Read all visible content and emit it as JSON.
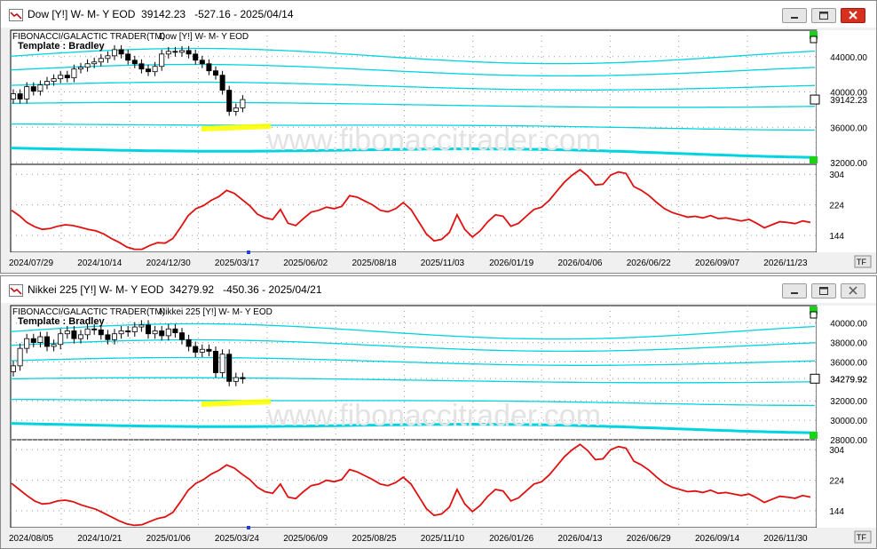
{
  "windows": [
    {
      "title": "Dow [Y!] W- M- Y EOD  39142.23   -527.16 - 2025/04/14",
      "close_style": "red",
      "header_left": "FIBONACCI/GALACTIC TRADER(TM)",
      "header_right": "Dow [Y!] W- M- Y EOD",
      "template_label": "Template : Bradley",
      "watermark": "www.fibonaccitrader.com",
      "current_price": "39142.23",
      "tf_label": "TF",
      "chart_data": {
        "type": "line",
        "price_axis": {
          "ylim": [
            31800,
            47000
          ],
          "ticks": [
            "44000.00",
            "40000.00",
            "36000.00",
            "32000.00"
          ]
        },
        "indicator_axis": {
          "ylim": [
            100,
            330
          ],
          "ticks": [
            "304",
            "224",
            "144"
          ]
        },
        "x_labels": [
          "2024/07/29",
          "2024/10/14",
          "2024/12/30",
          "2025/03/17",
          "2025/06/02",
          "2025/08/18",
          "2025/11/03",
          "2026/01/19",
          "2026/04/06",
          "2026/06/22",
          "2026/09/07",
          "2026/11/23"
        ],
        "price_candles": [
          39800,
          39200,
          40600,
          40100,
          40800,
          41200,
          41500,
          41900,
          41600,
          42600,
          42800,
          43200,
          43400,
          43800,
          44100,
          44800,
          44300,
          43600,
          43200,
          42600,
          42300,
          42900,
          44300,
          44600,
          44500,
          44700,
          44300,
          43600,
          43200,
          42400,
          41900,
          40200,
          37800,
          38200,
          39142
        ],
        "indicator": [
          210,
          196,
          178,
          167,
          160,
          162,
          168,
          172,
          170,
          165,
          160,
          156,
          148,
          136,
          126,
          114,
          108,
          108,
          118,
          125,
          124,
          136,
          165,
          196,
          214,
          222,
          236,
          246,
          262,
          254,
          238,
          222,
          200,
          190,
          186,
          212,
          176,
          170,
          188,
          205,
          210,
          218,
          214,
          220,
          248,
          244,
          234,
          224,
          210,
          206,
          214,
          230,
          212,
          180,
          148,
          130,
          134,
          152,
          198,
          160,
          140,
          156,
          180,
          198,
          194,
          168,
          176,
          194,
          212,
          218,
          236,
          260,
          284,
          302,
          316,
          300,
          276,
          278,
          302,
          310,
          306,
          272,
          262,
          248,
          230,
          214,
          204,
          198,
          192,
          194,
          190,
          196,
          188,
          190,
          186,
          182,
          186,
          176,
          164,
          172,
          180,
          178,
          175,
          182,
          178
        ]
      }
    },
    {
      "title": "Nikkei 225 [Y!] W- M- Y EOD  34279.92   -450.36 - 2025/04/21",
      "close_style": "grey",
      "header_left": "FIBONACCI/GALACTIC TRADER(TM)",
      "header_right": "Nikkei 225 [Y!] W- M- Y EOD",
      "template_label": "Template : Bradley",
      "watermark": "www.fibonaccitrader.com",
      "current_price": "34279.92",
      "tf_label": "TF",
      "chart_data": {
        "type": "line",
        "price_axis": {
          "ylim": [
            28000,
            41800
          ],
          "ticks": [
            "40000.00",
            "38000.00",
            "36000.00",
            "34279.92",
            "32000.00",
            "30000.00",
            "28000.00"
          ]
        },
        "indicator_axis": {
          "ylim": [
            100,
            330
          ],
          "ticks": [
            "304",
            "224",
            "144"
          ]
        },
        "x_labels": [
          "2024/08/05",
          "2024/10/21",
          "2025/01/06",
          "2025/03/24",
          "2025/06/09",
          "2025/08/25",
          "2025/11/10",
          "2026/01/26",
          "2026/04/13",
          "2026/06/29",
          "2026/09/14",
          "2026/11/30"
        ],
        "price_candles": [
          35600,
          37400,
          38400,
          38000,
          38600,
          37600,
          37800,
          38900,
          39200,
          38400,
          38800,
          39400,
          39300,
          38800,
          38300,
          38900,
          39200,
          39100,
          39600,
          39800,
          38900,
          39200,
          38700,
          39400,
          39000,
          38300,
          37600,
          37000,
          37300,
          37100,
          34900,
          36800,
          34000,
          34400,
          34279
        ],
        "indicator": [
          216,
          200,
          184,
          170,
          162,
          164,
          170,
          172,
          168,
          160,
          154,
          148,
          138,
          128,
          118,
          110,
          106,
          108,
          116,
          124,
          128,
          140,
          168,
          198,
          216,
          226,
          240,
          250,
          264,
          256,
          240,
          226,
          206,
          194,
          190,
          214,
          180,
          176,
          194,
          210,
          214,
          224,
          220,
          226,
          252,
          246,
          236,
          226,
          214,
          210,
          218,
          232,
          214,
          182,
          150,
          132,
          136,
          154,
          200,
          162,
          142,
          158,
          182,
          200,
          196,
          170,
          178,
          196,
          214,
          220,
          238,
          262,
          286,
          304,
          318,
          302,
          278,
          280,
          304,
          312,
          308,
          274,
          264,
          250,
          232,
          216,
          206,
          200,
          194,
          196,
          192,
          198,
          190,
          192,
          188,
          184,
          188,
          178,
          166,
          174,
          182,
          180,
          177,
          184,
          180
        ]
      }
    }
  ]
}
